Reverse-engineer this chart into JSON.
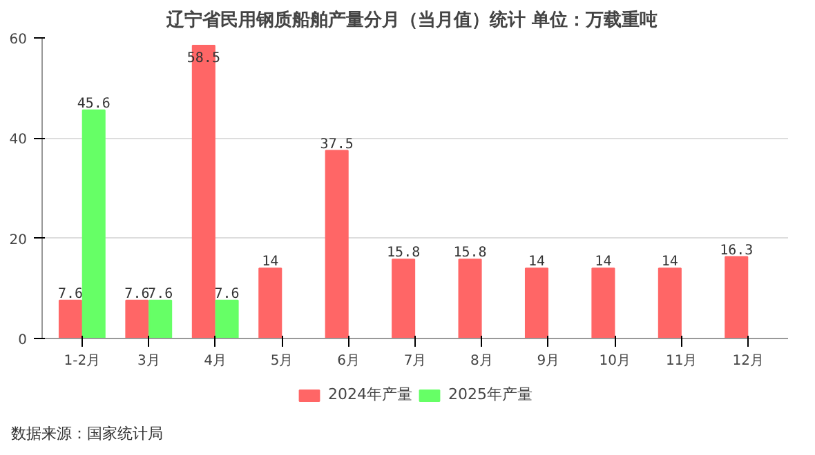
{
  "chart_data": {
    "type": "bar",
    "title": "辽宁省民用钢质船舶产量分月（当月值）统计  单位：万载重吨",
    "categories": [
      "1-2月",
      "3月",
      "4月",
      "5月",
      "6月",
      "7月",
      "8月",
      "9月",
      "10月",
      "11月",
      "12月"
    ],
    "series": [
      {
        "name": "2024年产量",
        "color": "#ff6666",
        "values": [
          7.6,
          7.6,
          58.5,
          14,
          37.5,
          15.8,
          15.8,
          14,
          14,
          14,
          16.3
        ]
      },
      {
        "name": "2025年产量",
        "color": "#66ff66",
        "values": [
          45.6,
          7.6,
          7.6,
          null,
          null,
          null,
          null,
          null,
          null,
          null,
          null
        ]
      }
    ],
    "ylim": [
      0,
      60
    ],
    "yticks": [
      0,
      20,
      40,
      60
    ],
    "grid": "y",
    "legend": "bottom",
    "data_labels": true,
    "annotations": [
      "数据来源：国家统计局"
    ]
  }
}
